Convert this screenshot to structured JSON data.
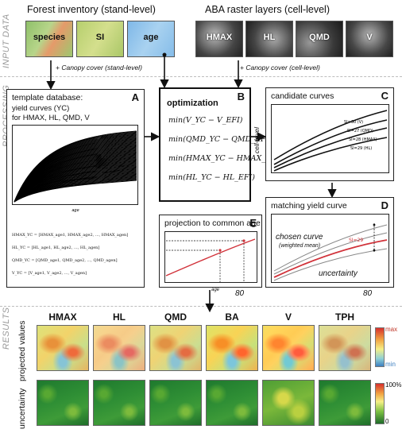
{
  "sections": {
    "input": "INPUT DATA",
    "processing": "PROCESSING",
    "results": "RESULTS"
  },
  "forest": {
    "title": "Forest inventory (stand-level)",
    "tiles": [
      "species",
      "SI",
      "age"
    ],
    "note": "+ Canopy cover (stand-level)"
  },
  "aba": {
    "title": "ABA raster layers (cell-level)",
    "tiles": [
      "HMAX",
      "HL",
      "QMD",
      "V"
    ],
    "note": "+ Canopy cover (cell-level)"
  },
  "panel_a": {
    "letter": "A",
    "line1": "template database:",
    "line2": "yield curves (YC)",
    "line3": "for HMAX, HL, QMD, V",
    "xlabel": "age",
    "equations": [
      "HMAX_YC = [HMAX_age1, HMAX_age2, ..., HMAX_agen]",
      "HL_YC = [HL_age1, HL_age2, ..., HL_agen]",
      "QMD_YC = [QMD_age1, QMD_age2, ..., QMD_agen]",
      "V_YC = [V_age1, V_age2, ..., V_agen]"
    ]
  },
  "panel_b": {
    "letter": "B",
    "title": "optimization",
    "side": "cell-level",
    "formulas": [
      "min(V_YC − V_EFI)",
      "min(QMD_YC − QMD_EFI)",
      "min(HMAX_YC − HMAX_EFI)",
      "min(HL_YC − HL_EFI)"
    ]
  },
  "panel_c": {
    "letter": "C",
    "title": "candidate curves",
    "curve_labels": [
      "SI=30 (V)",
      "SI=27 (QMD)",
      "SI=28 (HMAX)",
      "SI=29 (HL)"
    ]
  },
  "panel_d": {
    "letter": "D",
    "title": "matching yield curve",
    "chosen": "chosen curve",
    "chosen_sub": "(weighted mean)",
    "si": "SI=29",
    "uncertainty": "uncertainty"
  },
  "panel_e": {
    "letter": "E",
    "title": "projection to common age",
    "xlabel": "age",
    "tick": "80"
  },
  "panel_d_tick": "80",
  "results": {
    "columns": [
      "HMAX",
      "HL",
      "QMD",
      "BA",
      "V",
      "TPH"
    ],
    "row1": "projected values",
    "row2": "uncertainty",
    "legend1": {
      "max": "max",
      "min": "min"
    },
    "legend2": {
      "max": "100%",
      "min": "0"
    }
  },
  "colors": {
    "curve_red": "#d1323a",
    "accent_blue": "#5fb2e6"
  }
}
